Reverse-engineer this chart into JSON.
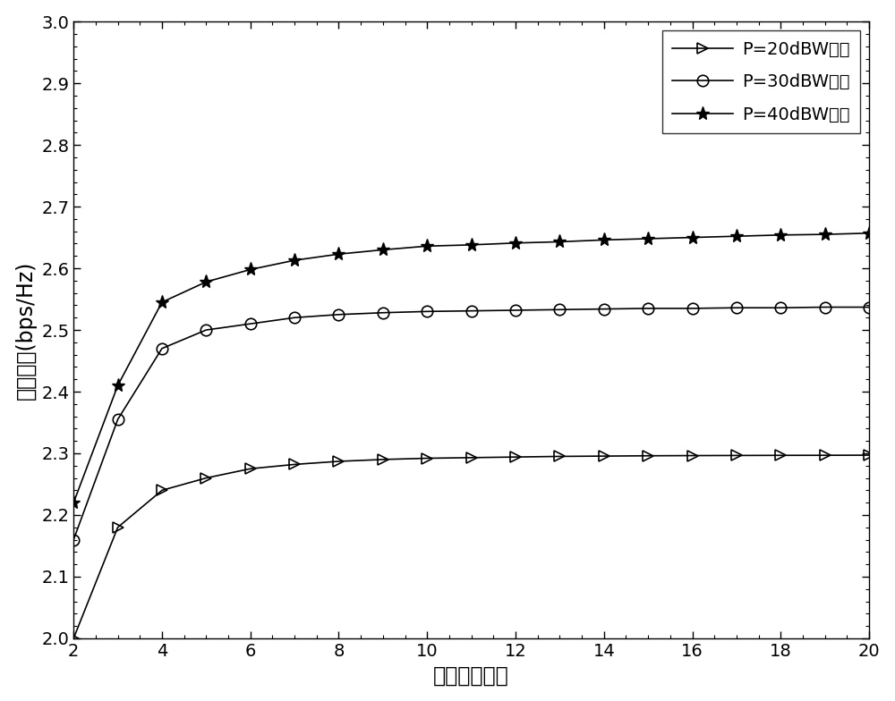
{
  "xlabel": "外层搜索次数",
  "ylabel": "保密速率(bps/Hz)",
  "xlim": [
    2,
    20
  ],
  "ylim": [
    2.0,
    3.0
  ],
  "xticks": [
    2,
    4,
    6,
    8,
    10,
    12,
    14,
    16,
    18,
    20
  ],
  "yticks": [
    2.0,
    2.1,
    2.2,
    2.3,
    2.4,
    2.5,
    2.6,
    2.7,
    2.8,
    2.9,
    3.0
  ],
  "line_color": "#000000",
  "marker_sizes": [
    9,
    9,
    11
  ],
  "series": [
    {
      "label": "P=20dBW的値",
      "marker": ">",
      "x": [
        2,
        3,
        4,
        5,
        6,
        7,
        8,
        9,
        10,
        11,
        12,
        13,
        14,
        15,
        16,
        17,
        18,
        19,
        20
      ],
      "y": [
        2.0,
        2.18,
        2.24,
        2.26,
        2.275,
        2.282,
        2.287,
        2.29,
        2.292,
        2.293,
        2.294,
        2.295,
        2.2955,
        2.296,
        2.2963,
        2.2965,
        2.2967,
        2.2968,
        2.297
      ]
    },
    {
      "label": "P=30dBW的値",
      "marker": "o",
      "x": [
        2,
        3,
        4,
        5,
        6,
        7,
        8,
        9,
        10,
        11,
        12,
        13,
        14,
        15,
        16,
        17,
        18,
        19,
        20
      ],
      "y": [
        2.16,
        2.355,
        2.47,
        2.5,
        2.51,
        2.52,
        2.525,
        2.528,
        2.53,
        2.531,
        2.532,
        2.533,
        2.534,
        2.535,
        2.535,
        2.536,
        2.536,
        2.537,
        2.537
      ]
    },
    {
      "label": "P=40dBW的値",
      "marker": "*",
      "x": [
        2,
        3,
        4,
        5,
        6,
        7,
        8,
        9,
        10,
        11,
        12,
        13,
        14,
        15,
        16,
        17,
        18,
        19,
        20
      ],
      "y": [
        2.22,
        2.41,
        2.545,
        2.578,
        2.598,
        2.613,
        2.623,
        2.63,
        2.636,
        2.638,
        2.641,
        2.643,
        2.646,
        2.648,
        2.65,
        2.652,
        2.654,
        2.655,
        2.657
      ]
    }
  ]
}
